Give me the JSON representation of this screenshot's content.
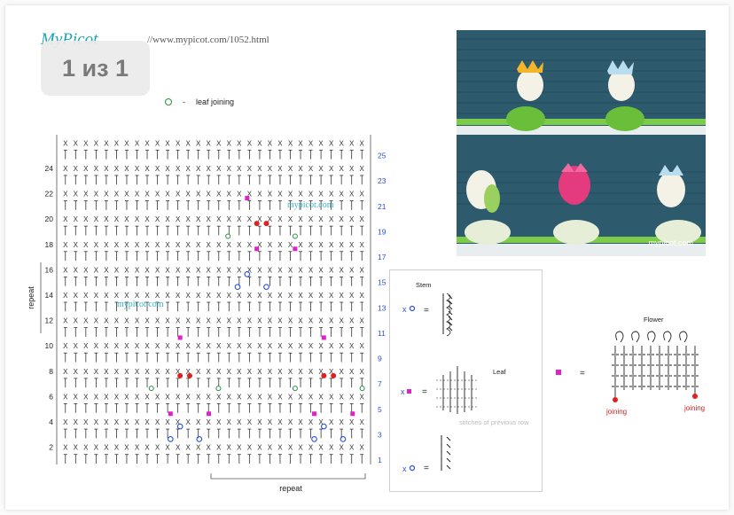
{
  "header": {
    "logo_text": "MyPicot",
    "url": "//www.mypicot.com/1052.html"
  },
  "pager": {
    "label": "1 из 1"
  },
  "legend": {
    "symbol_dash": "-",
    "text": "leaf joining",
    "circle_color": "#2a8f3a"
  },
  "chart": {
    "left_numbers": [
      "24",
      "22",
      "20",
      "18",
      "16",
      "14",
      "12",
      "10",
      "8",
      "6",
      "4",
      "2"
    ],
    "right_numbers": [
      "25",
      "23",
      "21",
      "19",
      "17",
      "15",
      "13",
      "11",
      "9",
      "7",
      "5",
      "3",
      "1"
    ],
    "watermark": "mypicot.com",
    "repeat_vertical": "repeat",
    "repeat_horizontal": "repeat",
    "stitch_color": "#333333",
    "accent_blue": "#2a4fd8",
    "accent_pink": "#e020c8",
    "accent_red": "#e02020",
    "accent_green": "#2a8f3a"
  },
  "photo": {
    "caption": "mypicot.com",
    "bg_color": "#2e5a6e"
  },
  "key": {
    "stem_title": "Stem",
    "leaf_title": "Leaf",
    "flower_title": "Flower",
    "equals": "=",
    "previous_row_note": "stitches of previous row",
    "joining_left": "joining",
    "joining_right": "joining"
  }
}
